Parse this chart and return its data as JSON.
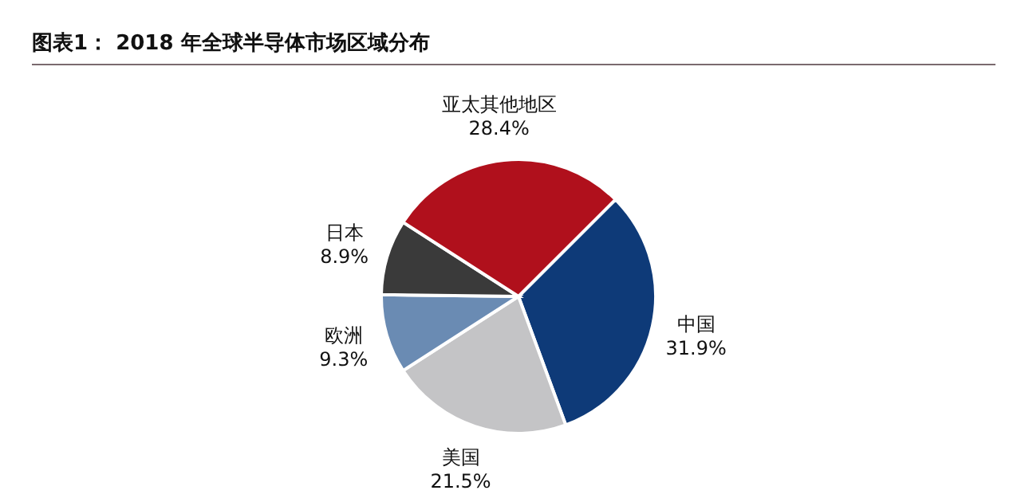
{
  "chart_data": {
    "type": "pie",
    "title": "图表1：  2018 年全球半导体市场区域分布",
    "categories": [
      "中国",
      "美国",
      "欧洲",
      "日本",
      "亚太其他地区"
    ],
    "values": [
      31.9,
      21.5,
      9.3,
      8.9,
      28.4
    ],
    "value_labels": [
      "31.9%",
      "21.5%",
      "9.3%",
      "8.9%",
      "28.4%"
    ],
    "colors": [
      "#0e3a78",
      "#c4c4c6",
      "#6a8bb3",
      "#3a3a3a",
      "#b0101c"
    ],
    "legend": false
  }
}
